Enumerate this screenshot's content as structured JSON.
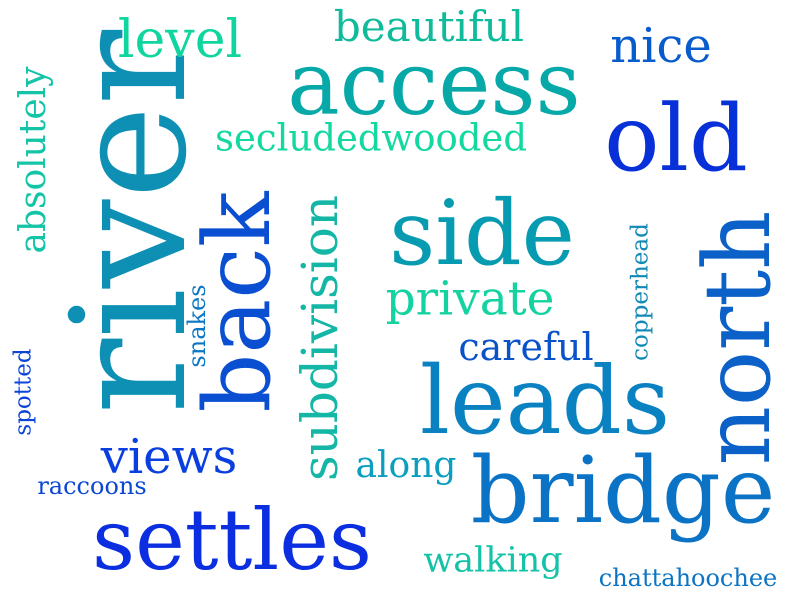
{
  "words": [
    {
      "text": "river",
      "color": "#0e90b5"
    },
    {
      "text": "access",
      "color": "#07a8a8"
    },
    {
      "text": "old",
      "color": "#0730d8"
    },
    {
      "text": "side",
      "color": "#069bb0"
    },
    {
      "text": "back",
      "color": "#0a4fd2"
    },
    {
      "text": "north",
      "color": "#0b61c8"
    },
    {
      "text": "leads",
      "color": "#0a82c2"
    },
    {
      "text": "bridge",
      "color": "#0a73c5"
    },
    {
      "text": "settles",
      "color": "#0b2ee0"
    },
    {
      "text": "subdivision",
      "color": "#14b6a6"
    },
    {
      "text": "level",
      "color": "#0fd59e"
    },
    {
      "text": "beautiful",
      "color": "#10bb9c"
    },
    {
      "text": "nice",
      "color": "#085bcc"
    },
    {
      "text": "secludedwooded",
      "color": "#13d8a0"
    },
    {
      "text": "absolutely",
      "color": "#14c4a7"
    },
    {
      "text": "private",
      "color": "#14d3a0"
    },
    {
      "text": "careful",
      "color": "#0a52c9"
    },
    {
      "text": "copperhead",
      "color": "#1089b6"
    },
    {
      "text": "snakes",
      "color": "#0a77c4"
    },
    {
      "text": "views",
      "color": "#0a3ede"
    },
    {
      "text": "along",
      "color": "#0c9ec0"
    },
    {
      "text": "spotted",
      "color": "#0a44d8"
    },
    {
      "text": "raccoons",
      "color": "#0b47d2"
    },
    {
      "text": "walking",
      "color": "#14c3a7"
    },
    {
      "text": "chattahoochee",
      "color": "#0b74c5"
    }
  ]
}
